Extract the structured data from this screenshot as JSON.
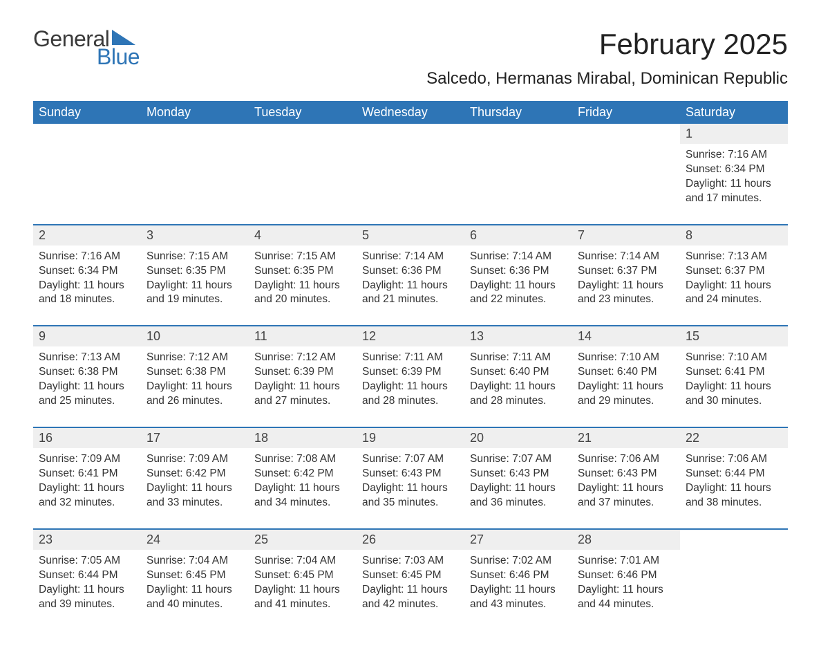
{
  "logo": {
    "word1": "General",
    "word2": "Blue",
    "word1_color": "#3a3a3a",
    "word2_color": "#2e75b6"
  },
  "title": "February 2025",
  "location": "Salcedo, Hermanas Mirabal, Dominican Republic",
  "colors": {
    "header_bg": "#2e75b6",
    "header_text": "#ffffff",
    "daynum_bg": "#efefef",
    "row_border": "#2e75b6",
    "body_text": "#333333",
    "page_bg": "#ffffff"
  },
  "typography": {
    "title_fontsize": 42,
    "location_fontsize": 24,
    "header_fontsize": 18,
    "daynum_fontsize": 18,
    "cell_fontsize": 15.5
  },
  "layout": {
    "columns": 7,
    "week_rows": 5
  },
  "weekdays": [
    "Sunday",
    "Monday",
    "Tuesday",
    "Wednesday",
    "Thursday",
    "Friday",
    "Saturday"
  ],
  "weeks": [
    [
      null,
      null,
      null,
      null,
      null,
      null,
      {
        "n": "1",
        "sunrise": "Sunrise: 7:16 AM",
        "sunset": "Sunset: 6:34 PM",
        "d1": "Daylight: 11 hours",
        "d2": "and 17 minutes."
      }
    ],
    [
      {
        "n": "2",
        "sunrise": "Sunrise: 7:16 AM",
        "sunset": "Sunset: 6:34 PM",
        "d1": "Daylight: 11 hours",
        "d2": "and 18 minutes."
      },
      {
        "n": "3",
        "sunrise": "Sunrise: 7:15 AM",
        "sunset": "Sunset: 6:35 PM",
        "d1": "Daylight: 11 hours",
        "d2": "and 19 minutes."
      },
      {
        "n": "4",
        "sunrise": "Sunrise: 7:15 AM",
        "sunset": "Sunset: 6:35 PM",
        "d1": "Daylight: 11 hours",
        "d2": "and 20 minutes."
      },
      {
        "n": "5",
        "sunrise": "Sunrise: 7:14 AM",
        "sunset": "Sunset: 6:36 PM",
        "d1": "Daylight: 11 hours",
        "d2": "and 21 minutes."
      },
      {
        "n": "6",
        "sunrise": "Sunrise: 7:14 AM",
        "sunset": "Sunset: 6:36 PM",
        "d1": "Daylight: 11 hours",
        "d2": "and 22 minutes."
      },
      {
        "n": "7",
        "sunrise": "Sunrise: 7:14 AM",
        "sunset": "Sunset: 6:37 PM",
        "d1": "Daylight: 11 hours",
        "d2": "and 23 minutes."
      },
      {
        "n": "8",
        "sunrise": "Sunrise: 7:13 AM",
        "sunset": "Sunset: 6:37 PM",
        "d1": "Daylight: 11 hours",
        "d2": "and 24 minutes."
      }
    ],
    [
      {
        "n": "9",
        "sunrise": "Sunrise: 7:13 AM",
        "sunset": "Sunset: 6:38 PM",
        "d1": "Daylight: 11 hours",
        "d2": "and 25 minutes."
      },
      {
        "n": "10",
        "sunrise": "Sunrise: 7:12 AM",
        "sunset": "Sunset: 6:38 PM",
        "d1": "Daylight: 11 hours",
        "d2": "and 26 minutes."
      },
      {
        "n": "11",
        "sunrise": "Sunrise: 7:12 AM",
        "sunset": "Sunset: 6:39 PM",
        "d1": "Daylight: 11 hours",
        "d2": "and 27 minutes."
      },
      {
        "n": "12",
        "sunrise": "Sunrise: 7:11 AM",
        "sunset": "Sunset: 6:39 PM",
        "d1": "Daylight: 11 hours",
        "d2": "and 28 minutes."
      },
      {
        "n": "13",
        "sunrise": "Sunrise: 7:11 AM",
        "sunset": "Sunset: 6:40 PM",
        "d1": "Daylight: 11 hours",
        "d2": "and 28 minutes."
      },
      {
        "n": "14",
        "sunrise": "Sunrise: 7:10 AM",
        "sunset": "Sunset: 6:40 PM",
        "d1": "Daylight: 11 hours",
        "d2": "and 29 minutes."
      },
      {
        "n": "15",
        "sunrise": "Sunrise: 7:10 AM",
        "sunset": "Sunset: 6:41 PM",
        "d1": "Daylight: 11 hours",
        "d2": "and 30 minutes."
      }
    ],
    [
      {
        "n": "16",
        "sunrise": "Sunrise: 7:09 AM",
        "sunset": "Sunset: 6:41 PM",
        "d1": "Daylight: 11 hours",
        "d2": "and 32 minutes."
      },
      {
        "n": "17",
        "sunrise": "Sunrise: 7:09 AM",
        "sunset": "Sunset: 6:42 PM",
        "d1": "Daylight: 11 hours",
        "d2": "and 33 minutes."
      },
      {
        "n": "18",
        "sunrise": "Sunrise: 7:08 AM",
        "sunset": "Sunset: 6:42 PM",
        "d1": "Daylight: 11 hours",
        "d2": "and 34 minutes."
      },
      {
        "n": "19",
        "sunrise": "Sunrise: 7:07 AM",
        "sunset": "Sunset: 6:43 PM",
        "d1": "Daylight: 11 hours",
        "d2": "and 35 minutes."
      },
      {
        "n": "20",
        "sunrise": "Sunrise: 7:07 AM",
        "sunset": "Sunset: 6:43 PM",
        "d1": "Daylight: 11 hours",
        "d2": "and 36 minutes."
      },
      {
        "n": "21",
        "sunrise": "Sunrise: 7:06 AM",
        "sunset": "Sunset: 6:43 PM",
        "d1": "Daylight: 11 hours",
        "d2": "and 37 minutes."
      },
      {
        "n": "22",
        "sunrise": "Sunrise: 7:06 AM",
        "sunset": "Sunset: 6:44 PM",
        "d1": "Daylight: 11 hours",
        "d2": "and 38 minutes."
      }
    ],
    [
      {
        "n": "23",
        "sunrise": "Sunrise: 7:05 AM",
        "sunset": "Sunset: 6:44 PM",
        "d1": "Daylight: 11 hours",
        "d2": "and 39 minutes."
      },
      {
        "n": "24",
        "sunrise": "Sunrise: 7:04 AM",
        "sunset": "Sunset: 6:45 PM",
        "d1": "Daylight: 11 hours",
        "d2": "and 40 minutes."
      },
      {
        "n": "25",
        "sunrise": "Sunrise: 7:04 AM",
        "sunset": "Sunset: 6:45 PM",
        "d1": "Daylight: 11 hours",
        "d2": "and 41 minutes."
      },
      {
        "n": "26",
        "sunrise": "Sunrise: 7:03 AM",
        "sunset": "Sunset: 6:45 PM",
        "d1": "Daylight: 11 hours",
        "d2": "and 42 minutes."
      },
      {
        "n": "27",
        "sunrise": "Sunrise: 7:02 AM",
        "sunset": "Sunset: 6:46 PM",
        "d1": "Daylight: 11 hours",
        "d2": "and 43 minutes."
      },
      {
        "n": "28",
        "sunrise": "Sunrise: 7:01 AM",
        "sunset": "Sunset: 6:46 PM",
        "d1": "Daylight: 11 hours",
        "d2": "and 44 minutes."
      },
      null
    ]
  ]
}
